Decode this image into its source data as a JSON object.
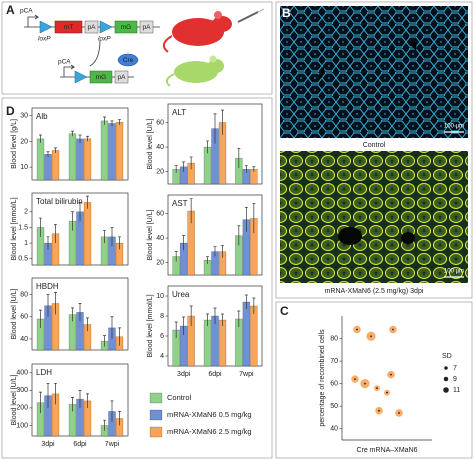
{
  "panels": [
    "A",
    "B",
    "C",
    "D"
  ],
  "diagram": {
    "construct_1": [
      "pCA",
      "loxP",
      "mT",
      "pA",
      "loxP",
      "mG",
      "pA"
    ],
    "recombinase": "Cre",
    "construct_2": [
      "pCA",
      "mG",
      "pA"
    ]
  },
  "images": [
    {
      "caption": "Control",
      "scale_bar": "100 µm"
    },
    {
      "caption": "mRNA-XMaN6 (2.5 mg/kg) 3dpi",
      "scale_bar": "100 µm"
    }
  ],
  "legend": [
    {
      "name": "Control",
      "color": "#8fd18a"
    },
    {
      "name": "mRNA-XMaN6 0.5 mg/kg",
      "color": "#6f8fd6"
    },
    {
      "name": "mRNA-XMaN6 2.5 mg/kg",
      "color": "#f7a55a"
    }
  ],
  "chart_data": [
    {
      "type": "bar",
      "title": "Alb",
      "y_label": "Blood level [g/L]",
      "categories": [
        null,
        null,
        null
      ],
      "ylim": [
        5,
        33
      ],
      "yticks": [
        10,
        20,
        30
      ],
      "series": [
        {
          "color": "#8fd18a",
          "values": [
            21,
            23,
            28
          ],
          "errors": [
            1.5,
            1,
            1.5
          ]
        },
        {
          "color": "#6f8fd6",
          "values": [
            15,
            21,
            27
          ],
          "errors": [
            1,
            1.5,
            1
          ]
        },
        {
          "color": "#f7a55a",
          "values": [
            16.5,
            21,
            27.5
          ],
          "errors": [
            1,
            1,
            1
          ]
        }
      ]
    },
    {
      "type": "bar",
      "title": "ALT",
      "y_label": "Blood level [U/L]",
      "categories": [
        null,
        null,
        null
      ],
      "ylim": [
        10,
        75
      ],
      "yticks": [
        20,
        40,
        60
      ],
      "series": [
        {
          "color": "#8fd18a",
          "values": [
            22,
            40,
            31
          ],
          "errors": [
            3,
            5,
            8
          ]
        },
        {
          "color": "#6f8fd6",
          "values": [
            24,
            55,
            22
          ],
          "errors": [
            4,
            12,
            3
          ]
        },
        {
          "color": "#f7a55a",
          "values": [
            27,
            60,
            22
          ],
          "errors": [
            5,
            10,
            2
          ]
        }
      ]
    },
    {
      "type": "bar",
      "title": "Total bilirubin",
      "y_label": "Blood level [mmol/L]",
      "categories": [
        null,
        null,
        null
      ],
      "ylim": [
        0.3,
        2.6
      ],
      "yticks": [
        0.5,
        1,
        1.5,
        2
      ],
      "series": [
        {
          "color": "#8fd18a",
          "values": [
            1.5,
            1.7,
            1.2
          ],
          "errors": [
            0.3,
            0.3,
            0.2
          ]
        },
        {
          "color": "#6f8fd6",
          "values": [
            1.0,
            2.0,
            1.2
          ],
          "errors": [
            0.2,
            0.3,
            0.3
          ]
        },
        {
          "color": "#f7a55a",
          "values": [
            1.3,
            2.3,
            1.0
          ],
          "errors": [
            0.3,
            0.2,
            0.2
          ]
        }
      ]
    },
    {
      "type": "bar",
      "title": "AST",
      "y_label": "Blood level [U/L]",
      "categories": [
        null,
        null,
        null
      ],
      "ylim": [
        10,
        75
      ],
      "yticks": [
        20,
        40,
        60
      ],
      "series": [
        {
          "color": "#8fd18a",
          "values": [
            25,
            22,
            42
          ],
          "errors": [
            4,
            3,
            8
          ]
        },
        {
          "color": "#6f8fd6",
          "values": [
            36,
            29,
            55
          ],
          "errors": [
            6,
            4,
            10
          ]
        },
        {
          "color": "#f7a55a",
          "values": [
            62,
            29,
            56
          ],
          "errors": [
            10,
            5,
            12
          ]
        }
      ]
    },
    {
      "type": "bar",
      "title": "HBDH",
      "y_label": "Blood level [U/L]",
      "categories": [
        null,
        null,
        null
      ],
      "ylim": [
        30,
        95
      ],
      "yticks": [
        40,
        60,
        80
      ],
      "series": [
        {
          "color": "#8fd18a",
          "values": [
            58,
            62,
            38
          ],
          "errors": [
            8,
            6,
            5
          ]
        },
        {
          "color": "#6f8fd6",
          "values": [
            70,
            64,
            50
          ],
          "errors": [
            10,
            8,
            10
          ]
        },
        {
          "color": "#f7a55a",
          "values": [
            72,
            53,
            42
          ],
          "errors": [
            10,
            6,
            8
          ]
        }
      ]
    },
    {
      "type": "bar",
      "title": "Urea",
      "y_label": "Blood level [mmol/L]",
      "categories": [
        "3dpi",
        "6dpi",
        "7wpi"
      ],
      "ylim": [
        3,
        11
      ],
      "yticks": [
        4,
        6,
        8,
        10
      ],
      "series": [
        {
          "color": "#8fd18a",
          "values": [
            6.6,
            7.6,
            7.7
          ],
          "errors": [
            0.8,
            0.6,
            0.8
          ]
        },
        {
          "color": "#6f8fd6",
          "values": [
            7,
            8,
            9.4
          ],
          "errors": [
            0.9,
            0.8,
            0.7
          ]
        },
        {
          "color": "#f7a55a",
          "values": [
            8,
            7.6,
            9
          ],
          "errors": [
            1.0,
            0.6,
            0.8
          ]
        }
      ]
    },
    {
      "type": "bar",
      "title": "LDH",
      "y_label": "Blood level [U/L]",
      "categories": [
        "3dpi",
        "6dpi",
        "7wpi"
      ],
      "ylim": [
        40,
        450
      ],
      "yticks": [
        100,
        200,
        300,
        400
      ],
      "series": [
        {
          "color": "#8fd18a",
          "values": [
            230,
            220,
            100
          ],
          "errors": [
            60,
            40,
            30
          ]
        },
        {
          "color": "#6f8fd6",
          "values": [
            270,
            250,
            180
          ],
          "errors": [
            70,
            50,
            60
          ]
        },
        {
          "color": "#f7a55a",
          "values": [
            280,
            240,
            140
          ],
          "errors": [
            60,
            40,
            40
          ]
        }
      ]
    },
    {
      "type": "scatter",
      "y_label": "percentage of recombined cells",
      "x_label": "Cre mRNA–XMaN6",
      "ylim": [
        35,
        90
      ],
      "yticks": [
        40,
        50,
        60,
        70,
        80
      ],
      "color": "#f7a55a",
      "values": [
        84,
        81,
        84,
        62,
        60,
        58,
        64,
        56,
        48,
        47
      ],
      "sizes": [
        9,
        11,
        9,
        9,
        11,
        7,
        9,
        7,
        9,
        9
      ],
      "size_legend": {
        "title": "SD",
        "values": [
          7,
          9,
          11
        ]
      }
    }
  ]
}
